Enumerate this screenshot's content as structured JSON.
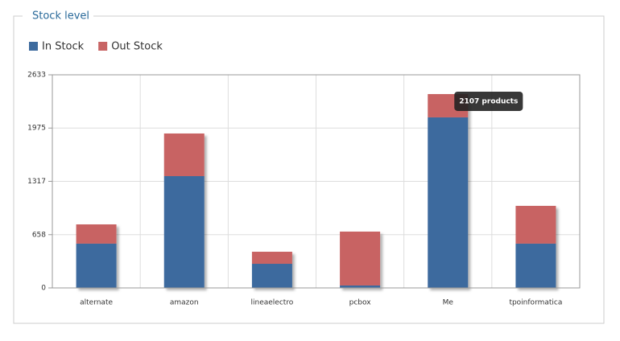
{
  "chart_data": {
    "type": "stacked-bar",
    "title": "Stock level",
    "categories": [
      "alternate",
      "amazon",
      "lineaelectro",
      "pcbox",
      "Me",
      "tpoinformatica"
    ],
    "series": [
      {
        "name": "In Stock",
        "color": "#3d6b9e",
        "values": [
          547,
          1381,
          298,
          30,
          2107,
          547
        ]
      },
      {
        "name": "Out Stock",
        "color": "#c86464",
        "values": [
          238,
          527,
          149,
          666,
          288,
          467
        ]
      }
    ],
    "ylim": [
      0,
      2633
    ],
    "yticks": [
      0,
      658,
      1317,
      1975,
      2633
    ],
    "grid": true,
    "legend": "top-left",
    "tooltip": "2107 products"
  }
}
